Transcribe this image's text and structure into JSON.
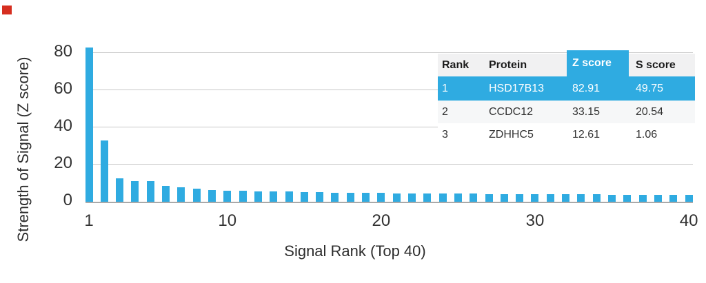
{
  "marker": {
    "color": "#d62e20"
  },
  "chart_data": {
    "type": "bar",
    "title": "",
    "xlabel": "Signal Rank (Top 40)",
    "ylabel": "Strength of Signal (Z score)",
    "bar_color": "#2fabe1",
    "grid": true,
    "ylim": [
      0,
      86.3
    ],
    "yticks": [
      0,
      20,
      40,
      60,
      80
    ],
    "xticks": [
      1,
      10,
      20,
      30,
      40
    ],
    "x": [
      1,
      2,
      3,
      4,
      5,
      6,
      7,
      8,
      9,
      10,
      11,
      12,
      13,
      14,
      15,
      16,
      17,
      18,
      19,
      20,
      21,
      22,
      23,
      24,
      25,
      26,
      27,
      28,
      29,
      30,
      31,
      32,
      33,
      34,
      35,
      36,
      37,
      38,
      39,
      40
    ],
    "values": [
      82.91,
      33.15,
      12.61,
      11.2,
      11.0,
      8.6,
      7.6,
      6.9,
      6.4,
      6.1,
      5.9,
      5.7,
      5.5,
      5.4,
      5.2,
      5.1,
      5.0,
      4.9,
      4.8,
      4.7,
      4.6,
      4.6,
      4.5,
      4.4,
      4.4,
      4.3,
      4.2,
      4.2,
      4.1,
      4.1,
      4.0,
      4.0,
      3.9,
      3.9,
      3.8,
      3.8,
      3.7,
      3.7,
      3.6,
      3.6
    ]
  },
  "table": {
    "accent": "#2fabe1",
    "headers": [
      "Rank",
      "Protein",
      "Z score",
      "S score"
    ],
    "highlight_header_index": 2,
    "rows": [
      {
        "rank": "1",
        "protein": "HSD17B13",
        "z": "82.91",
        "s": "49.75",
        "highlight": true
      },
      {
        "rank": "2",
        "protein": "CCDC12",
        "z": "33.15",
        "s": "20.54",
        "highlight": false
      },
      {
        "rank": "3",
        "protein": "ZDHHC5",
        "z": "12.61",
        "s": "1.06",
        "highlight": false
      }
    ]
  }
}
